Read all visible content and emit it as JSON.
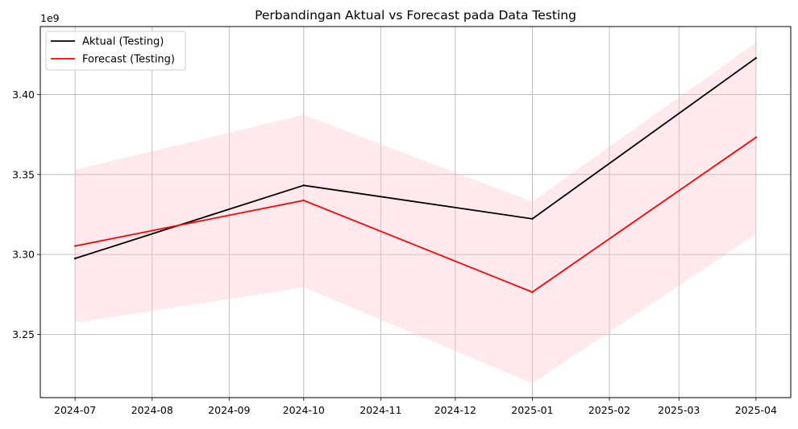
{
  "chart_data": {
    "type": "line",
    "title": "Perbandingan Aktual vs Forecast pada Data Testing",
    "xlabel": "",
    "ylabel": "",
    "y_offset_label": "1e9",
    "x_ticks": [
      "2024-07",
      "2024-08",
      "2024-09",
      "2024-10",
      "2024-11",
      "2024-12",
      "2025-01",
      "2025-02",
      "2025-03",
      "2025-04"
    ],
    "y_ticks": [
      3.25,
      3.3,
      3.35,
      3.4
    ],
    "y_tick_labels": [
      "3.25",
      "3.30",
      "3.35",
      "3.40"
    ],
    "xlim": [
      "2024-06-17",
      "2025-04-15"
    ],
    "ylim": [
      3.2105,
      3.4425
    ],
    "grid": true,
    "legend_position": "top-left",
    "x": [
      "2024-07",
      "2024-10",
      "2025-01",
      "2025-04"
    ],
    "series": [
      {
        "name": "Aktual (Testing)",
        "color": "#000000",
        "values": [
          3.2975,
          3.3432,
          3.3223,
          3.4228
        ]
      },
      {
        "name": "Forecast (Testing)",
        "color": "#ff0000",
        "values": [
          3.3053,
          3.3338,
          3.2765,
          3.3732
        ]
      }
    ],
    "confidence_band": {
      "color": "#ffc0cb",
      "opacity": 0.35,
      "lower": [
        3.2572,
        3.2795,
        3.2195,
        3.3127
      ],
      "upper": [
        3.353,
        3.3873,
        3.333,
        3.4325
      ]
    }
  }
}
